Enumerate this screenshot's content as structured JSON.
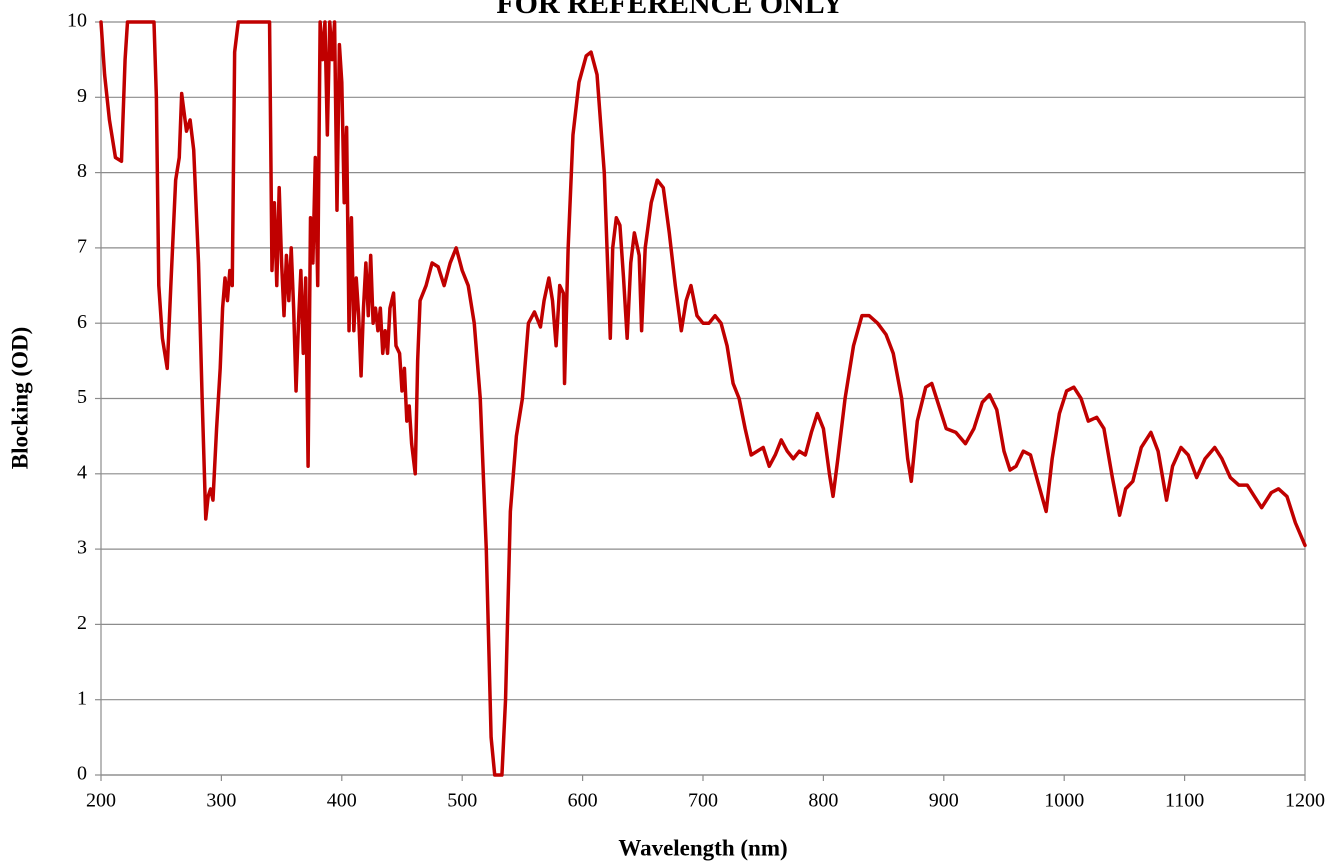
{
  "chart_data": {
    "type": "line",
    "title": "FOR REFERENCE ONLY",
    "x_label": "Wavelength (nm)",
    "y_label": "Blocking (OD)",
    "x": [
      200,
      203,
      207,
      212,
      217,
      220,
      222,
      240,
      244,
      246,
      248,
      251,
      255,
      258,
      262,
      265,
      267,
      269,
      271,
      274,
      277,
      281,
      284,
      287,
      289,
      291,
      293,
      296,
      299,
      301,
      303,
      305,
      307,
      309,
      311,
      314,
      340,
      342,
      344,
      346,
      348,
      350,
      352,
      354,
      356,
      358,
      360,
      362,
      364,
      366,
      368,
      370,
      372,
      374,
      376,
      378,
      380,
      382,
      384,
      386,
      388,
      390,
      392,
      394,
      396,
      398,
      400,
      402,
      404,
      406,
      408,
      410,
      412,
      414,
      416,
      418,
      420,
      422,
      424,
      426,
      428,
      430,
      432,
      434,
      436,
      438,
      440,
      443,
      445,
      448,
      450,
      452,
      454,
      456,
      458,
      461,
      463,
      465,
      470,
      475,
      480,
      485,
      490,
      495,
      500,
      505,
      510,
      515,
      520,
      524,
      527,
      533,
      536,
      540,
      545,
      550,
      555,
      560,
      565,
      568,
      572,
      575,
      578,
      581,
      584,
      585,
      588,
      592,
      597,
      603,
      607,
      612,
      618,
      623,
      625,
      628,
      631,
      634,
      637,
      640,
      643,
      647,
      649,
      652,
      657,
      662,
      667,
      672,
      677,
      682,
      686,
      690,
      695,
      700,
      705,
      710,
      715,
      720,
      725,
      730,
      735,
      740,
      745,
      750,
      755,
      760,
      765,
      770,
      775,
      780,
      785,
      790,
      795,
      800,
      805,
      808,
      812,
      818,
      825,
      832,
      838,
      845,
      852,
      858,
      865,
      870,
      873,
      878,
      885,
      890,
      896,
      902,
      910,
      918,
      925,
      932,
      938,
      944,
      950,
      955,
      960,
      966,
      972,
      978,
      985,
      990,
      996,
      1002,
      1008,
      1014,
      1020,
      1027,
      1033,
      1040,
      1046,
      1051,
      1057,
      1064,
      1072,
      1078,
      1085,
      1090,
      1097,
      1103,
      1110,
      1117,
      1125,
      1131,
      1138,
      1145,
      1152,
      1158,
      1164,
      1172,
      1178,
      1185,
      1192,
      1200
    ],
    "series": [
      {
        "color": "#c00000",
        "values": [
          10,
          9.3,
          8.7,
          8.2,
          8.15,
          9.5,
          10,
          10,
          10,
          9,
          6.5,
          5.8,
          5.4,
          6.5,
          7.9,
          8.2,
          9.05,
          8.8,
          8.55,
          8.7,
          8.3,
          6.8,
          5,
          3.4,
          3.7,
          3.8,
          3.65,
          4.6,
          5.4,
          6.2,
          6.6,
          6.3,
          6.7,
          6.5,
          9.6,
          10,
          10,
          6.7,
          7.6,
          6.5,
          7.8,
          6.8,
          6.1,
          6.9,
          6.3,
          7,
          6.2,
          5.1,
          6,
          6.7,
          5.6,
          6.6,
          4.1,
          7.4,
          6.8,
          8.2,
          6.5,
          10,
          9.5,
          10,
          8.5,
          10,
          9.5,
          10,
          7.5,
          9.7,
          9.2,
          7.6,
          8.6,
          5.9,
          7.4,
          5.9,
          6.6,
          6.1,
          5.3,
          6.2,
          6.8,
          6.1,
          6.9,
          6.0,
          6.2,
          5.9,
          6.2,
          5.6,
          5.9,
          5.6,
          6.2,
          6.4,
          5.7,
          5.6,
          5.1,
          5.4,
          4.7,
          4.9,
          4.4,
          4.0,
          5.5,
          6.3,
          6.5,
          6.8,
          6.75,
          6.5,
          6.8,
          7.0,
          6.7,
          6.5,
          6.0,
          5.0,
          3.0,
          0.5,
          0,
          0,
          1.0,
          3.5,
          4.5,
          5.0,
          6.0,
          6.15,
          5.95,
          6.3,
          6.6,
          6.3,
          5.7,
          6.5,
          6.4,
          5.2,
          7.0,
          8.5,
          9.2,
          9.55,
          9.6,
          9.3,
          8.0,
          5.8,
          7.0,
          7.4,
          7.3,
          6.6,
          5.8,
          6.8,
          7.2,
          6.9,
          5.9,
          7.0,
          7.6,
          7.9,
          7.8,
          7.2,
          6.5,
          5.9,
          6.3,
          6.5,
          6.1,
          6.0,
          6.0,
          6.1,
          6.0,
          5.7,
          5.2,
          5.0,
          4.6,
          4.25,
          4.3,
          4.35,
          4.1,
          4.25,
          4.45,
          4.3,
          4.2,
          4.3,
          4.25,
          4.55,
          4.8,
          4.6,
          4.0,
          3.7,
          4.2,
          5.0,
          5.7,
          6.1,
          6.1,
          6.0,
          5.85,
          5.6,
          5.0,
          4.2,
          3.9,
          4.7,
          5.15,
          5.2,
          4.9,
          4.6,
          4.55,
          4.4,
          4.6,
          4.95,
          5.05,
          4.85,
          4.3,
          4.05,
          4.1,
          4.3,
          4.25,
          3.9,
          3.5,
          4.2,
          4.8,
          5.1,
          5.15,
          5.0,
          4.7,
          4.75,
          4.6,
          3.95,
          3.45,
          3.8,
          3.9,
          4.35,
          4.55,
          4.3,
          3.65,
          4.1,
          4.35,
          4.25,
          3.95,
          4.2,
          4.35,
          4.2,
          3.95,
          3.85,
          3.85,
          3.7,
          3.55,
          3.75,
          3.8,
          3.7,
          3.35,
          3.05
        ]
      }
    ],
    "xlim": [
      200,
      1200
    ],
    "xticks": [
      200,
      300,
      400,
      500,
      600,
      700,
      800,
      900,
      1000,
      1100,
      1200
    ],
    "ylim": [
      0,
      10
    ],
    "yticks": [
      0,
      1,
      2,
      3,
      4,
      5,
      6,
      7,
      8,
      9,
      10
    ],
    "grid": true
  }
}
